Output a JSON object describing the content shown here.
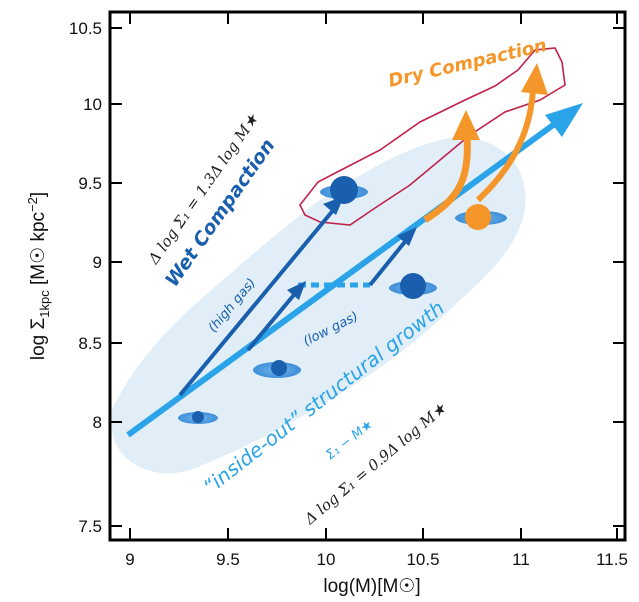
{
  "axes": {
    "xlabel": "log(M)[M☉]",
    "ylabel_main": "log Σ",
    "ylabel_sub": "1kpc",
    "ylabel_units": " [M☉ kpc",
    "ylabel_exp": "−2",
    "ylabel_close": "]",
    "xticks": [
      "9",
      "9.5",
      "10",
      "10.5",
      "11",
      "11.5"
    ],
    "yticks": [
      "7.5",
      "8",
      "8.5",
      "9",
      "9.5",
      "10",
      "10.5"
    ]
  },
  "annotations": {
    "wet_relation": "Δ log Σ₁ = 1.3Δ log M★",
    "wet_compaction": "Wet Compaction",
    "high_gas": "(high gas)",
    "low_gas": "(low gas)",
    "dry_compaction": "Dry Compaction",
    "inside_out": "“inside-out” structural growth",
    "sigma_m": "Σ₁ − M★",
    "growth_relation": "Δ log Σ₁ = 0.9Δ log M★"
  },
  "colors": {
    "light_blue": "#2aa3e8",
    "dark_blue": "#1a5fad",
    "orange": "#f5962a",
    "contour": "#c0224a",
    "shade": "#dcebf7"
  }
}
